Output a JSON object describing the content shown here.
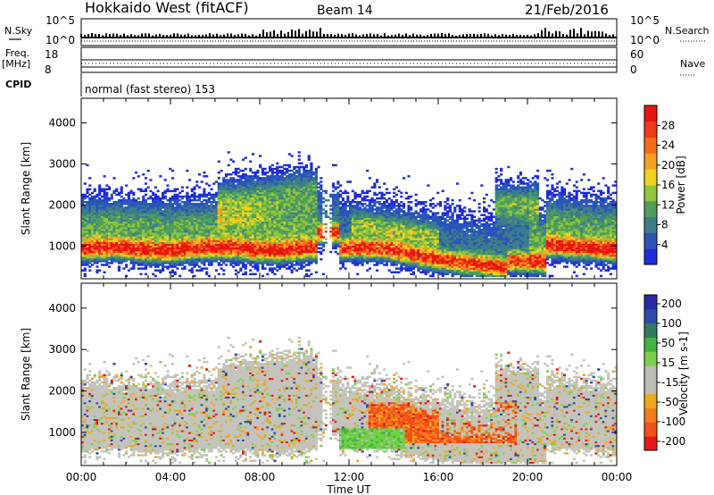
{
  "header": {
    "site": "Hokkaido West (fitACF)",
    "beam": "Beam 14",
    "date": "21/Feb/2016"
  },
  "top_panel": {
    "left_label_1": "N.Sky",
    "left_label_2": "Freq.",
    "left_label_3": "[MHz]",
    "left_label_4": "CPID",
    "right_label_1": "N.Search",
    "right_label_2": "Nave",
    "sky_ticks": [
      "10^5",
      "10^0"
    ],
    "freq_ticks": [
      "18",
      "8"
    ],
    "nave_ticks": [
      "60",
      "0"
    ],
    "search_ticks": [
      "10^5",
      "10^0"
    ],
    "cpid_text": "normal (fast stereo) 153"
  },
  "x_axis": {
    "label": "Time UT",
    "ticks": [
      "00:00",
      "04:00",
      "08:00",
      "12:00",
      "16:00",
      "20:00",
      "00:00"
    ]
  },
  "colors": {
    "power": [
      "#1f2cd9",
      "#2b55b8",
      "#3c7d8a",
      "#4f9e5c",
      "#8fc63a",
      "#f2d21d",
      "#f7a020",
      "#f46d1c",
      "#ef3a14",
      "#e8140f"
    ],
    "velocity": [
      "#e81818",
      "#f24f1a",
      "#f57b1d",
      "#f2a61f",
      "#bdbdb5",
      "#bdbdb5",
      "#7bd04a",
      "#44b344",
      "#2f7a62",
      "#2d4aa8",
      "#2a2aa6"
    ]
  },
  "chart_data": [
    {
      "type": "heatmap",
      "panel": "power",
      "ylabel": "Slant Range [km]",
      "yticks": [
        "1000",
        "2000",
        "3000",
        "4000"
      ],
      "ylim": [
        200,
        4600
      ],
      "xlim_hours": [
        0,
        24
      ],
      "colorbar_label": "Power [dB]",
      "colorbar_ticks": [
        "4",
        "8",
        "12",
        "16",
        "20",
        "24",
        "28"
      ],
      "clim": [
        0,
        32
      ]
    },
    {
      "type": "heatmap",
      "panel": "velocity",
      "ylabel": "Slant Range [km]",
      "yticks": [
        "1000",
        "2000",
        "3000",
        "4000"
      ],
      "ylim": [
        200,
        4600
      ],
      "xlim_hours": [
        0,
        24
      ],
      "colorbar_label": "Velocity [m s-1]",
      "colorbar_ticks": [
        "200",
        "100",
        "50",
        "15",
        "-15",
        "-50",
        "-100",
        "-200"
      ]
    }
  ]
}
